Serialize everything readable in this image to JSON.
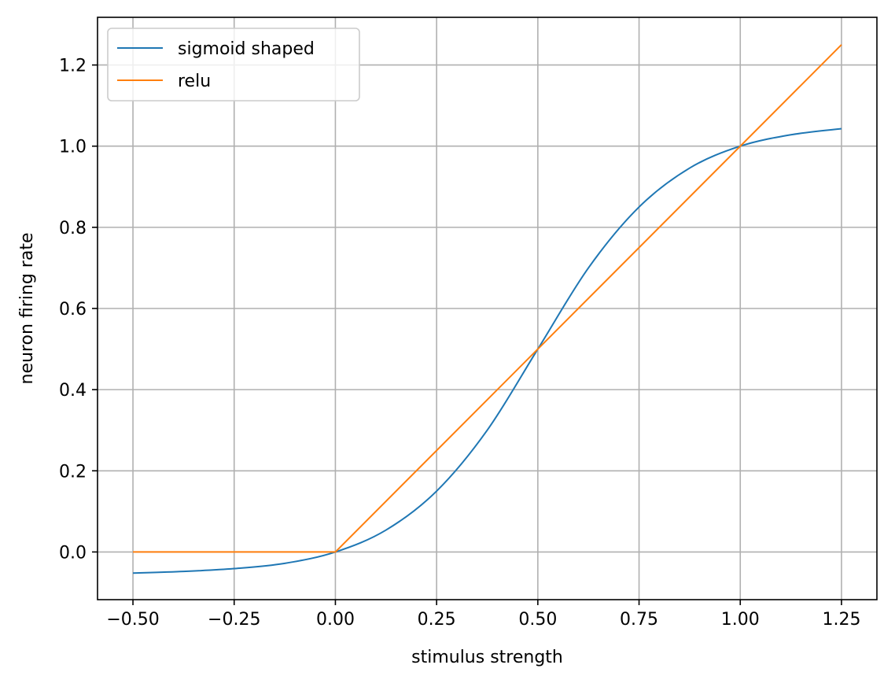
{
  "chart_data": {
    "type": "line",
    "xlabel": "stimulus strength",
    "ylabel": "neuron firing rate",
    "xlim": [
      -0.5875,
      1.3375
    ],
    "ylim": [
      -0.1175,
      1.3175
    ],
    "xticks": [
      -0.5,
      -0.25,
      0.0,
      0.25,
      0.5,
      0.75,
      1.0,
      1.25
    ],
    "xtick_labels": [
      "−0.50",
      "−0.25",
      "0.00",
      "0.25",
      "0.50",
      "0.75",
      "1.00",
      "1.25"
    ],
    "yticks": [
      0.0,
      0.2,
      0.4,
      0.6,
      0.8,
      1.0,
      1.2
    ],
    "ytick_labels": [
      "0.0",
      "0.2",
      "0.4",
      "0.6",
      "0.8",
      "1.0",
      "1.2"
    ],
    "grid": true,
    "legend_position": "top-left",
    "series": [
      {
        "name": "sigmoid shaped",
        "color": "#1f77b4",
        "x": [
          -0.5,
          -0.375,
          -0.25,
          -0.125,
          0.0,
          0.125,
          0.25,
          0.375,
          0.5,
          0.625,
          0.75,
          0.875,
          1.0,
          1.125,
          1.25
        ],
        "y": [
          -0.052,
          -0.048,
          -0.041,
          -0.028,
          0.0,
          0.054,
          0.15,
          0.3,
          0.5,
          0.7,
          0.85,
          0.946,
          1.0,
          1.028,
          1.043
        ]
      },
      {
        "name": "relu",
        "color": "#ff7f0e",
        "x": [
          -0.5,
          0.0,
          1.25
        ],
        "y": [
          0.0,
          0.0,
          1.25
        ]
      }
    ]
  }
}
